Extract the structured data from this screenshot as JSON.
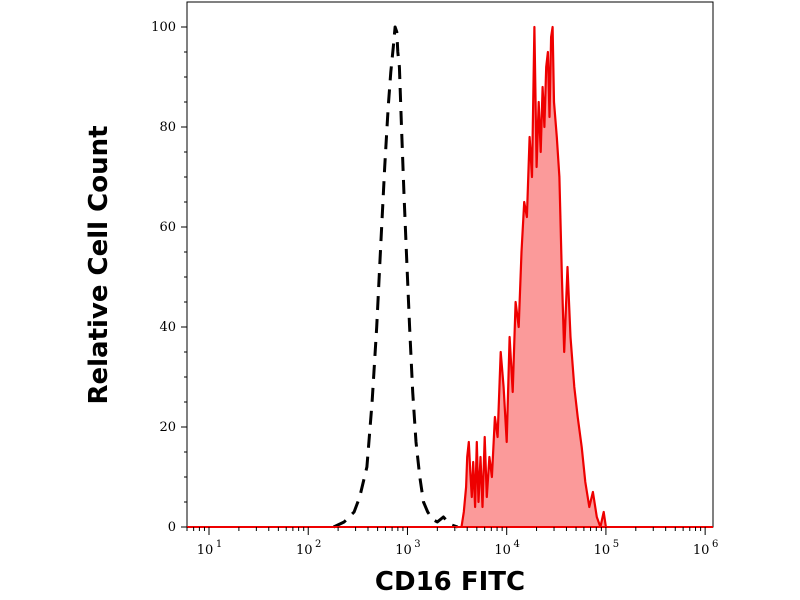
{
  "chart_data": {
    "type": "area",
    "xlabel": "CD16 FITC",
    "ylabel": "Relative Cell Count",
    "xscale": "log",
    "xlim": [
      6,
      1200000
    ],
    "ylim": [
      0,
      100
    ],
    "x_ticks": [
      {
        "base": "10",
        "exp": "1",
        "value": 10
      },
      {
        "base": "10",
        "exp": "2",
        "value": 100
      },
      {
        "base": "10",
        "exp": "3",
        "value": 1000
      },
      {
        "base": "10",
        "exp": "4",
        "value": 10000
      },
      {
        "base": "10",
        "exp": "5",
        "value": 100000
      },
      {
        "base": "10",
        "exp": "6",
        "value": 1000000
      }
    ],
    "y_ticks": [
      {
        "label": "0",
        "value": 0
      },
      {
        "label": "20",
        "value": 20
      },
      {
        "label": "40",
        "value": 40
      },
      {
        "label": "60",
        "value": 60
      },
      {
        "label": "80",
        "value": 80
      },
      {
        "label": "100",
        "value": 100
      }
    ],
    "grid": false,
    "series": [
      {
        "style": "dashed",
        "color": "#000000",
        "fill": "none",
        "x": [
          180,
          230,
          290,
          330,
          390,
          440,
          490,
          540,
          590,
          640,
          680,
          720,
          750,
          780,
          800,
          830,
          870,
          920,
          980,
          1050,
          1130,
          1220,
          1330,
          1450,
          1600,
          1800,
          2000,
          2300,
          2700,
          3200
        ],
        "y": [
          0,
          1,
          3,
          6,
          12,
          25,
          40,
          57,
          72,
          84,
          91,
          96,
          100,
          99,
          95,
          92,
          80,
          67,
          54,
          40,
          27,
          17,
          10,
          5,
          3,
          1.5,
          1,
          2,
          0.5,
          0
        ]
      },
      {
        "style": "solid",
        "color": "#ee0000",
        "fill": "#fb9a9a",
        "x": [
          3500,
          3700,
          3900,
          4000,
          4150,
          4300,
          4450,
          4600,
          4800,
          5000,
          5200,
          5450,
          5700,
          6000,
          6300,
          6700,
          7100,
          7600,
          8100,
          8700,
          9300,
          10000,
          10700,
          11500,
          12300,
          13200,
          14100,
          15000,
          16000,
          17000,
          18000,
          19000,
          20000,
          21000,
          22000,
          23000,
          24000,
          25000,
          26000,
          27000,
          28000,
          29000,
          30000,
          32000,
          34000,
          36000,
          38000,
          41000,
          44000,
          48000,
          52000,
          57000,
          62000,
          68000,
          74000,
          81000,
          88000,
          95000,
          100000
        ],
        "y": [
          0,
          3,
          8,
          14,
          17,
          11,
          6,
          13,
          4,
          17,
          5,
          14,
          4,
          18,
          6,
          14,
          10,
          22,
          18,
          35,
          28,
          17,
          38,
          27,
          45,
          40,
          55,
          65,
          62,
          78,
          70,
          100,
          72,
          85,
          75,
          88,
          80,
          92,
          95,
          82,
          98,
          100,
          85,
          78,
          70,
          50,
          35,
          52,
          38,
          28,
          22,
          16,
          9,
          4,
          7,
          2,
          0,
          3,
          0
        ]
      }
    ]
  }
}
